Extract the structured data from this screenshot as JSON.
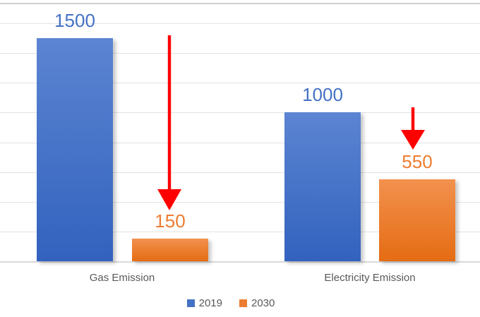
{
  "chart_data": {
    "type": "bar",
    "title": "",
    "xlabel": "",
    "ylabel": "",
    "categories": [
      "Gas Emission",
      "Electricity Emission"
    ],
    "series": [
      {
        "name": "2019",
        "color": "#4472C4",
        "values": [
          1500,
          1000
        ]
      },
      {
        "name": "2030",
        "color": "#ED7D31",
        "values": [
          150,
          550
        ]
      }
    ],
    "data_labels": [
      [
        "1500",
        "1000"
      ],
      [
        "150",
        "550"
      ]
    ],
    "ylim": [
      0,
      1600
    ],
    "gridline_interval": 200,
    "grid": true,
    "y_axis_tick_labels_visible": false,
    "legend_position": "bottom",
    "annotations": [
      {
        "shape": "down-arrow",
        "color": "#FF0000"
      },
      {
        "shape": "down-arrow",
        "color": "#FF0000"
      }
    ],
    "colors": {
      "category_label": "#595959",
      "legend_text": "#595959",
      "gridline": "#E2E2E2",
      "axis_line": "#D9D9D9",
      "chart_border": "#D0D0D0"
    }
  }
}
